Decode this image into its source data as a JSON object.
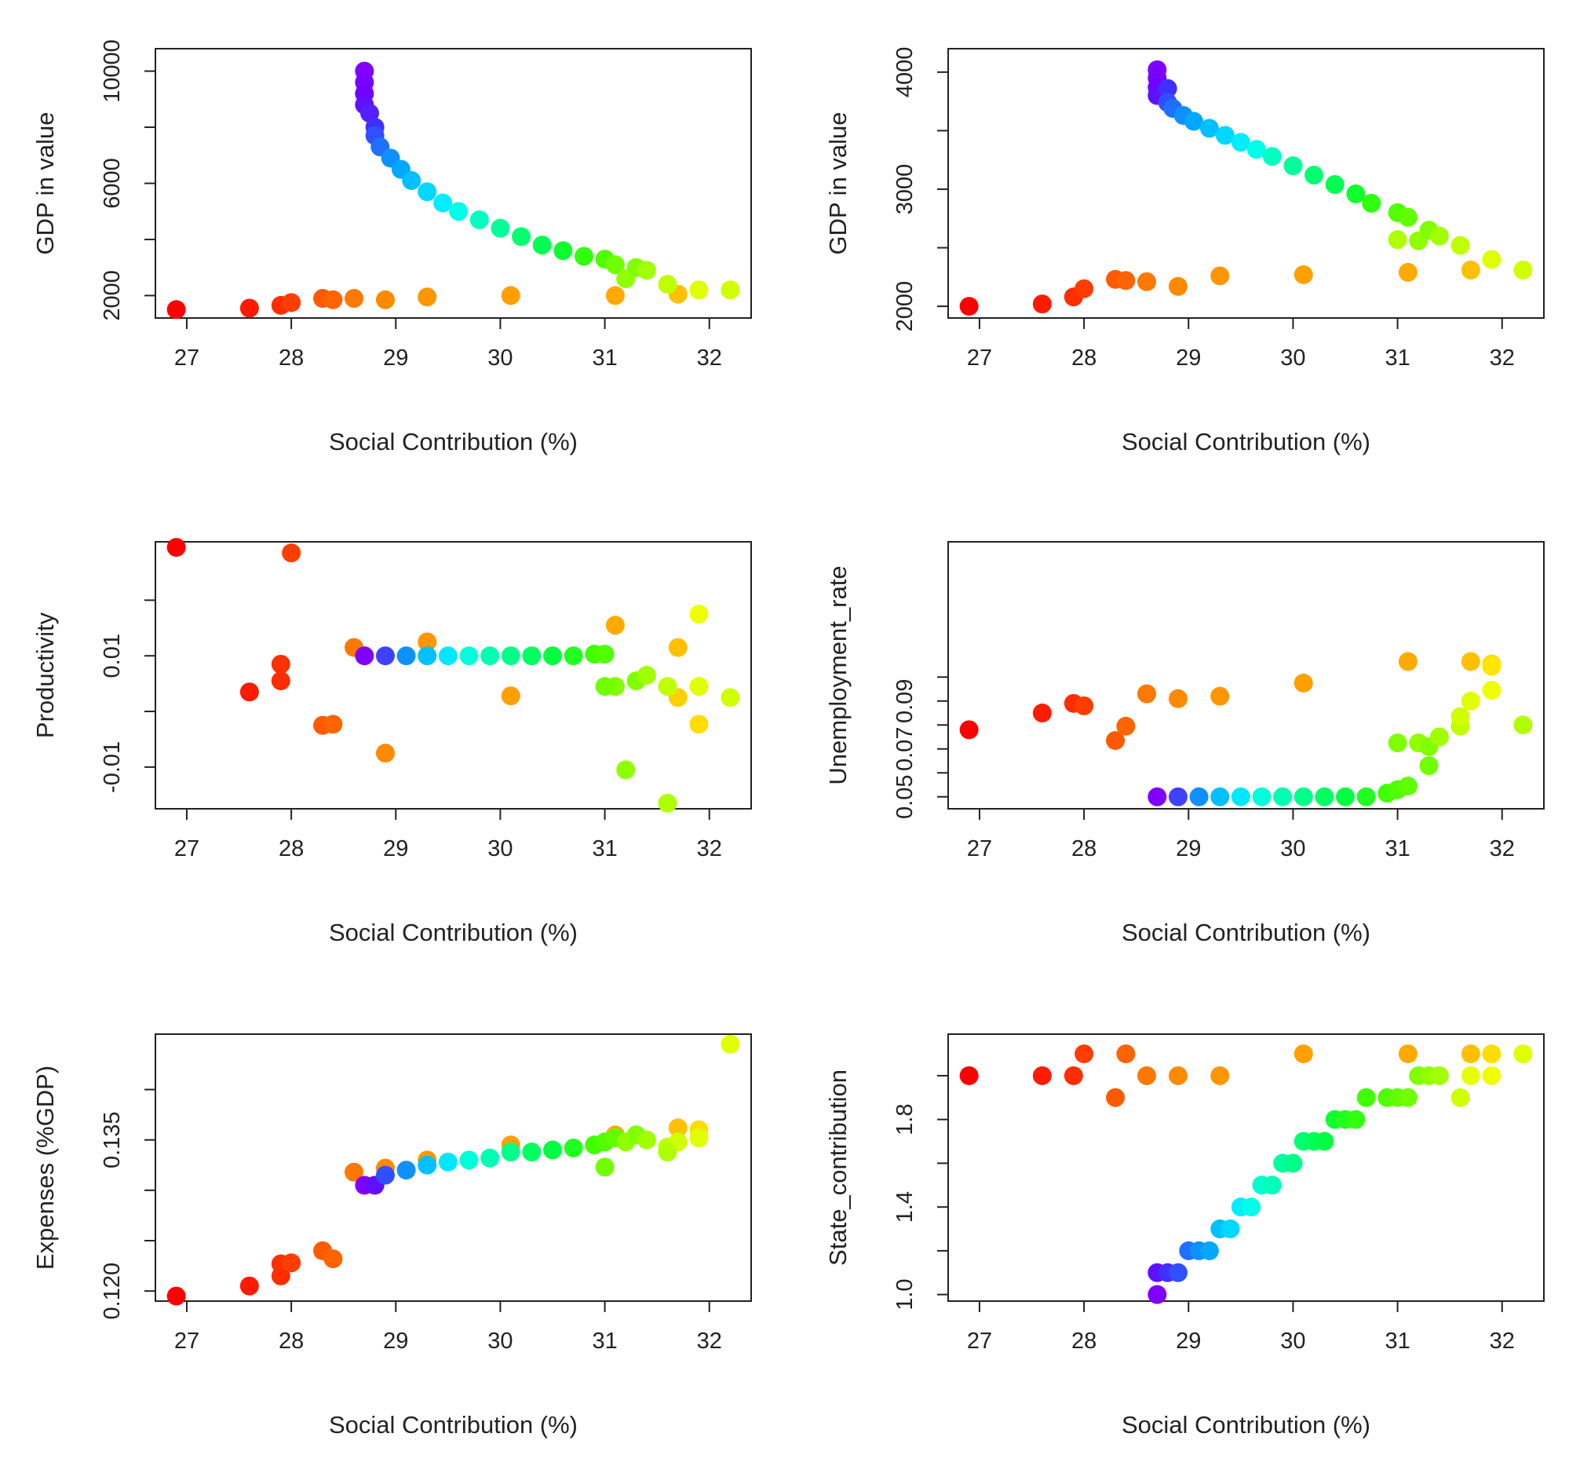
{
  "chart_data": [
    {
      "type": "scatter",
      "xlabel": "Social Contribution (%)",
      "ylabel": "GDP in value",
      "xlim": [
        26.7,
        32.4
      ],
      "ylim": [
        1200,
        10800
      ],
      "xticks": [
        27,
        28,
        29,
        30,
        31,
        32
      ],
      "yticks": [
        2000,
        6000,
        10000
      ],
      "yticks_minor": [
        4000,
        8000
      ],
      "x": [
        26.9,
        27.6,
        27.9,
        28.0,
        28.3,
        28.4,
        28.6,
        28.9,
        29.3,
        30.1,
        31.1,
        31.7,
        28.7,
        28.7,
        28.7,
        28.7,
        28.75,
        28.8,
        28.8,
        28.85,
        28.95,
        29.05,
        29.15,
        29.3,
        29.45,
        29.6,
        29.8,
        30.0,
        30.2,
        30.4,
        30.6,
        30.8,
        31.0,
        31.1,
        31.2,
        31.3,
        31.4,
        31.6,
        31.9,
        32.2
      ],
      "y": [
        1500,
        1550,
        1650,
        1750,
        1900,
        1850,
        1900,
        1850,
        1950,
        2000,
        2000,
        2050,
        10000,
        9600,
        9200,
        8800,
        8500,
        8000,
        7700,
        7300,
        6900,
        6500,
        6100,
        5700,
        5300,
        5000,
        4700,
        4400,
        4100,
        3800,
        3600,
        3400,
        3300,
        3100,
        2600,
        3000,
        2900,
        2400,
        2200,
        2200
      ],
      "colors": [
        "#ff0000",
        "#ff1a00",
        "#ff2d00",
        "#ff3d00",
        "#ff5a00",
        "#ff6400",
        "#ff7800",
        "#ff8a00",
        "#ff9600",
        "#ffa000",
        "#ffaa00",
        "#ffc000",
        "#8000ff",
        "#7a00ff",
        "#7000ff",
        "#6010ff",
        "#5520ff",
        "#4030ff",
        "#3050ff",
        "#2070ff",
        "#1090ff",
        "#00a8ff",
        "#00c0ff",
        "#00d8ff",
        "#00eeff",
        "#00ffe8",
        "#00ffc0",
        "#00ff98",
        "#00ff70",
        "#00ff50",
        "#10ff30",
        "#30ff10",
        "#50ff00",
        "#70ff00",
        "#90ff00",
        "#80ff00",
        "#a0ff00",
        "#c0ff00",
        "#e0ff00",
        "#d0ff00"
      ]
    },
    {
      "type": "scatter",
      "xlabel": "Social Contribution (%)",
      "ylabel": "GDP in value",
      "xlim": [
        26.7,
        32.4
      ],
      "ylim": [
        1900,
        4200
      ],
      "xticks": [
        27,
        28,
        29,
        30,
        31,
        32
      ],
      "yticks": [
        2000,
        3000,
        4000
      ],
      "yticks_minor": [
        2500,
        3500
      ],
      "x": [
        26.9,
        27.6,
        27.9,
        28.0,
        28.3,
        28.4,
        28.6,
        28.9,
        29.3,
        30.1,
        31.1,
        31.7,
        28.7,
        28.7,
        28.7,
        28.7,
        28.8,
        28.8,
        28.85,
        28.95,
        29.05,
        29.2,
        29.35,
        29.5,
        29.65,
        29.8,
        30.0,
        30.2,
        30.4,
        30.6,
        30.75,
        31.0,
        31.1,
        31.2,
        31.3,
        31.4,
        31.6,
        31.9,
        32.2,
        31.0
      ],
      "y": [
        2000,
        2020,
        2080,
        2150,
        2230,
        2220,
        2210,
        2170,
        2260,
        2270,
        2290,
        2310,
        4020,
        3950,
        3870,
        3800,
        3860,
        3740,
        3690,
        3630,
        3580,
        3520,
        3460,
        3400,
        3340,
        3280,
        3200,
        3120,
        3040,
        2960,
        2880,
        2800,
        2760,
        2560,
        2650,
        2600,
        2520,
        2400,
        2310,
        2570
      ],
      "colors": [
        "#ff0000",
        "#ff1a00",
        "#ff2d00",
        "#ff3d00",
        "#ff5a00",
        "#ff6400",
        "#ff7800",
        "#ff8a00",
        "#ff9600",
        "#ffa000",
        "#ffaa00",
        "#ffc000",
        "#8000ff",
        "#7a00ff",
        "#7000ff",
        "#6010ff",
        "#4030ff",
        "#3050ff",
        "#2070ff",
        "#1090ff",
        "#00a8ff",
        "#00c0ff",
        "#00d8ff",
        "#00eeff",
        "#00ffe8",
        "#00ffc0",
        "#00ff98",
        "#00ff70",
        "#00ff50",
        "#10ff30",
        "#30ff10",
        "#50ff00",
        "#60ff00",
        "#90ff00",
        "#80ff00",
        "#a0ff00",
        "#c0ff00",
        "#e0ff00",
        "#d0ff00",
        "#b0ff00"
      ]
    },
    {
      "type": "scatter",
      "xlabel": "Social Contribution (%)",
      "ylabel": "Productivity",
      "xlim": [
        26.7,
        32.4
      ],
      "ylim": [
        -0.0175,
        0.0305
      ],
      "xticks": [
        27,
        28,
        29,
        30,
        31,
        32
      ],
      "yticks": [
        -0.01,
        0.01
      ],
      "ytick_labels": [
        "-0.01",
        "0.01"
      ],
      "yticks_minor": [
        0.0,
        0.02
      ],
      "x": [
        26.9,
        27.6,
        27.9,
        27.9,
        28.0,
        28.3,
        28.4,
        28.6,
        28.9,
        29.3,
        30.1,
        31.1,
        31.7,
        31.9,
        31.7,
        31.9,
        28.7,
        28.9,
        29.1,
        29.3,
        29.5,
        29.7,
        29.9,
        30.1,
        30.3,
        30.5,
        30.7,
        30.9,
        31.0,
        31.1,
        31.2,
        31.3,
        31.4,
        31.6,
        31.9,
        32.2,
        31.6,
        31.0
      ],
      "y": [
        0.0295,
        0.0035,
        0.0055,
        0.0085,
        0.0285,
        -0.0025,
        -0.0023,
        0.0115,
        -0.0075,
        0.0125,
        0.0028,
        0.0155,
        0.0115,
        -0.0023,
        0.0025,
        0.0175,
        0.01,
        0.01,
        0.01,
        0.01,
        0.01,
        0.01,
        0.01,
        0.01,
        0.01,
        0.01,
        0.01,
        0.0103,
        0.0103,
        0.0045,
        -0.0105,
        0.0055,
        0.0065,
        0.0045,
        0.0045,
        0.0025,
        -0.0165,
        0.0045
      ],
      "colors": [
        "#ff0000",
        "#ff1a00",
        "#ff2d00",
        "#ff3000",
        "#ff3d00",
        "#ff5a00",
        "#ff6400",
        "#ff7800",
        "#ff8a00",
        "#ff9600",
        "#ffa000",
        "#ffaa00",
        "#ffc000",
        "#ffdd00",
        "#ffd000",
        "#f0ff00",
        "#8000ff",
        "#4040ff",
        "#1090ff",
        "#00c0ff",
        "#00e8ff",
        "#00ffd8",
        "#00ffb0",
        "#00ff88",
        "#00ff60",
        "#00ff40",
        "#20ff20",
        "#40ff00",
        "#50ff00",
        "#80ff00",
        "#90ff00",
        "#80ff00",
        "#a0ff00",
        "#c0ff00",
        "#e0ff00",
        "#d0ff00",
        "#b0ff00",
        "#70ff00"
      ]
    },
    {
      "type": "scatter",
      "xlabel": "Social Contribution (%)",
      "ylabel": "Unemployment_rate",
      "xlim": [
        26.7,
        32.4
      ],
      "ylim": [
        0.045,
        0.1565
      ],
      "xticks": [
        27,
        28,
        29,
        30,
        31,
        32
      ],
      "yticks": [
        0.05,
        0.07,
        0.09
      ],
      "ytick_labels": [
        "0.05",
        "0.07",
        "0.09"
      ],
      "yticks_minor": [
        0.06,
        0.08,
        0.1
      ],
      "x": [
        26.9,
        27.6,
        27.9,
        28.0,
        28.3,
        28.4,
        28.6,
        28.9,
        29.3,
        30.1,
        31.1,
        31.7,
        31.9,
        31.9,
        28.7,
        28.9,
        29.1,
        29.3,
        29.5,
        29.7,
        29.9,
        30.1,
        30.3,
        30.5,
        30.7,
        30.9,
        31.0,
        31.1,
        31.0,
        31.2,
        31.3,
        31.3,
        31.4,
        31.6,
        31.6,
        31.7,
        31.9,
        32.2
      ],
      "y": [
        0.078,
        0.085,
        0.089,
        0.088,
        0.0735,
        0.0795,
        0.093,
        0.091,
        0.092,
        0.0975,
        0.1065,
        0.1065,
        0.1055,
        0.1045,
        0.05,
        0.05,
        0.05,
        0.05,
        0.05,
        0.05,
        0.05,
        0.05,
        0.05,
        0.05,
        0.05,
        0.0515,
        0.053,
        0.0545,
        0.0725,
        0.0725,
        0.071,
        0.063,
        0.075,
        0.0795,
        0.0835,
        0.09,
        0.0945,
        0.08
      ],
      "colors": [
        "#ff0000",
        "#ff1a00",
        "#ff2d00",
        "#ff3d00",
        "#ff5a00",
        "#ff6400",
        "#ff7800",
        "#ff8a00",
        "#ff9600",
        "#ffa000",
        "#ffaa00",
        "#ffc000",
        "#ffdd00",
        "#ffe600",
        "#8000ff",
        "#4040ff",
        "#1090ff",
        "#00c0ff",
        "#00e8ff",
        "#00ffd8",
        "#00ffb0",
        "#00ff88",
        "#00ff60",
        "#00ff40",
        "#20ff20",
        "#40ff00",
        "#50ff00",
        "#60ff00",
        "#80ff00",
        "#90ff00",
        "#80ff00",
        "#70ff00",
        "#a0ff00",
        "#c0ff00",
        "#d0ff00",
        "#e0ff00",
        "#f0ff00",
        "#b0ff00"
      ]
    },
    {
      "type": "scatter",
      "xlabel": "Social Contribution (%)",
      "ylabel": "Expenses (%GDP)",
      "xlim": [
        26.7,
        32.4
      ],
      "ylim": [
        0.119,
        0.1455
      ],
      "xticks": [
        27,
        28,
        29,
        30,
        31,
        32
      ],
      "yticks": [
        0.12,
        0.135
      ],
      "ytick_labels": [
        "0.120",
        "0.135"
      ],
      "yticks_minor": [
        0.125,
        0.13,
        0.14
      ],
      "x": [
        26.9,
        27.6,
        27.9,
        27.9,
        28.0,
        28.3,
        28.4,
        28.6,
        28.9,
        29.3,
        30.1,
        31.1,
        31.7,
        31.9,
        32.2,
        28.7,
        28.8,
        28.9,
        29.1,
        29.3,
        29.5,
        29.7,
        29.9,
        30.1,
        30.3,
        30.5,
        30.7,
        30.9,
        31.0,
        31.1,
        31.2,
        31.3,
        31.4,
        31.6,
        31.7,
        31.9,
        31.0,
        31.6
      ],
      "y": [
        0.1195,
        0.1205,
        0.1215,
        0.1227,
        0.1228,
        0.124,
        0.1232,
        0.1318,
        0.1322,
        0.133,
        0.1345,
        0.1355,
        0.1362,
        0.136,
        0.1445,
        0.1305,
        0.1305,
        0.1315,
        0.132,
        0.1325,
        0.1328,
        0.133,
        0.1332,
        0.1338,
        0.1338,
        0.134,
        0.1342,
        0.1345,
        0.1348,
        0.1352,
        0.1348,
        0.1355,
        0.135,
        0.1343,
        0.1348,
        0.1352,
        0.1323,
        0.1338
      ],
      "colors": [
        "#ff0000",
        "#ff1a00",
        "#ff2d00",
        "#ff3000",
        "#ff3d00",
        "#ff5a00",
        "#ff6400",
        "#ff7800",
        "#ff8a00",
        "#ff9600",
        "#ffa000",
        "#ffaa00",
        "#ffc000",
        "#ffdd00",
        "#e0ff00",
        "#8000ff",
        "#6010ff",
        "#3050ff",
        "#1090ff",
        "#00c0ff",
        "#00e8ff",
        "#00ffd8",
        "#00ffb0",
        "#00ff88",
        "#00ff60",
        "#00ff40",
        "#20ff20",
        "#40ff00",
        "#50ff00",
        "#60ff00",
        "#90ff00",
        "#80ff00",
        "#a0ff00",
        "#c0ff00",
        "#d0ff00",
        "#e0ff00",
        "#70ff00",
        "#b0ff00"
      ]
    },
    {
      "type": "scatter",
      "xlabel": "Social Contribution (%)",
      "ylabel": "State_contribution",
      "xlim": [
        26.7,
        32.4
      ],
      "ylim": [
        0.97,
        2.19
      ],
      "xticks": [
        27,
        28,
        29,
        30,
        31,
        32
      ],
      "yticks": [
        1.0,
        1.4,
        1.8
      ],
      "ytick_labels": [
        "1.0",
        "1.4",
        "1.8"
      ],
      "yticks_minor": [
        1.2,
        1.6,
        2.0
      ],
      "x": [
        26.9,
        27.6,
        27.9,
        28.0,
        28.3,
        28.4,
        28.6,
        28.9,
        29.3,
        30.1,
        31.1,
        31.7,
        31.9,
        32.2,
        31.6,
        31.7,
        31.9,
        28.7,
        28.7,
        28.8,
        28.9,
        29.0,
        29.1,
        29.2,
        29.3,
        29.4,
        29.5,
        29.6,
        29.7,
        29.8,
        29.9,
        30.0,
        30.1,
        30.2,
        30.3,
        30.4,
        30.5,
        30.6,
        30.7,
        30.9,
        31.0,
        31.1,
        31.2,
        31.3,
        31.4
      ],
      "y": [
        2.0,
        2.0,
        2.0,
        2.1,
        1.9,
        2.1,
        2.0,
        2.0,
        2.0,
        2.1,
        2.1,
        2.1,
        2.1,
        2.1,
        1.9,
        2.0,
        2.0,
        1.0,
        1.1,
        1.1,
        1.1,
        1.2,
        1.2,
        1.2,
        1.3,
        1.3,
        1.4,
        1.4,
        1.5,
        1.5,
        1.6,
        1.6,
        1.7,
        1.7,
        1.7,
        1.8,
        1.8,
        1.8,
        1.9,
        1.9,
        1.9,
        1.9,
        2.0,
        2.0,
        2.0
      ],
      "colors": [
        "#ff0000",
        "#ff1a00",
        "#ff2d00",
        "#ff3d00",
        "#ff5a00",
        "#ff6400",
        "#ff7800",
        "#ff8a00",
        "#ff9600",
        "#ffa000",
        "#ffaa00",
        "#ffc000",
        "#ffdd00",
        "#e0ff00",
        "#d0ff00",
        "#e6ff00",
        "#f0ff00",
        "#8000ff",
        "#6010ff",
        "#4030ff",
        "#3050ff",
        "#2070ff",
        "#1090ff",
        "#00a8ff",
        "#00c0ff",
        "#00d8ff",
        "#00eeff",
        "#00ffe8",
        "#00ffd0",
        "#00ffb8",
        "#00ffa0",
        "#00ff88",
        "#00ff70",
        "#00ff58",
        "#00ff40",
        "#10ff30",
        "#20ff20",
        "#30ff10",
        "#40ff00",
        "#50ff00",
        "#60ff00",
        "#70ff00",
        "#80ff00",
        "#90ff00",
        "#a0ff00"
      ]
    }
  ]
}
